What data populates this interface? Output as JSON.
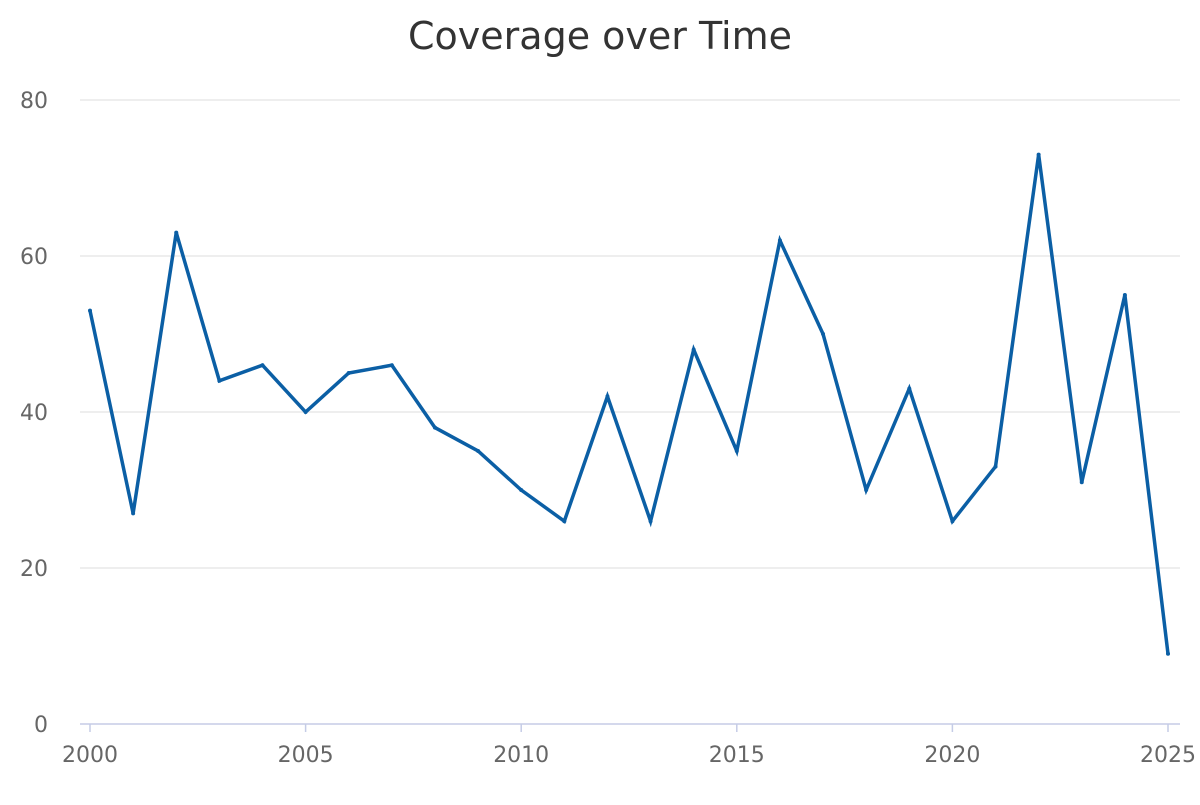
{
  "chart_data": {
    "type": "line",
    "title": "Coverage over Time",
    "xlabel": "",
    "ylabel": "",
    "xlim": [
      2000,
      2025
    ],
    "ylim": [
      0,
      80
    ],
    "xticks": [
      2000,
      2005,
      2010,
      2015,
      2020,
      2025
    ],
    "yticks": [
      0,
      20,
      40,
      60,
      80
    ],
    "grid": "horizontal",
    "legend": "none",
    "series": [
      {
        "color": "#0b5fa5",
        "x": [
          2000,
          2001,
          2002,
          2003,
          2004,
          2005,
          2006,
          2007,
          2008,
          2009,
          2010,
          2011,
          2012,
          2013,
          2014,
          2015,
          2016,
          2017,
          2018,
          2019,
          2020,
          2021,
          2022,
          2023,
          2024,
          2025
        ],
        "y": [
          53,
          27,
          63,
          44,
          46,
          40,
          45,
          46,
          38,
          35,
          30,
          26,
          42,
          26,
          48,
          35,
          62,
          50,
          30,
          43,
          26,
          33,
          73,
          31,
          55,
          9
        ]
      }
    ]
  },
  "colors": {
    "grid": "#dddddd",
    "axis": "#c5cce6",
    "tick_label": "#666666",
    "title": "#333333"
  }
}
